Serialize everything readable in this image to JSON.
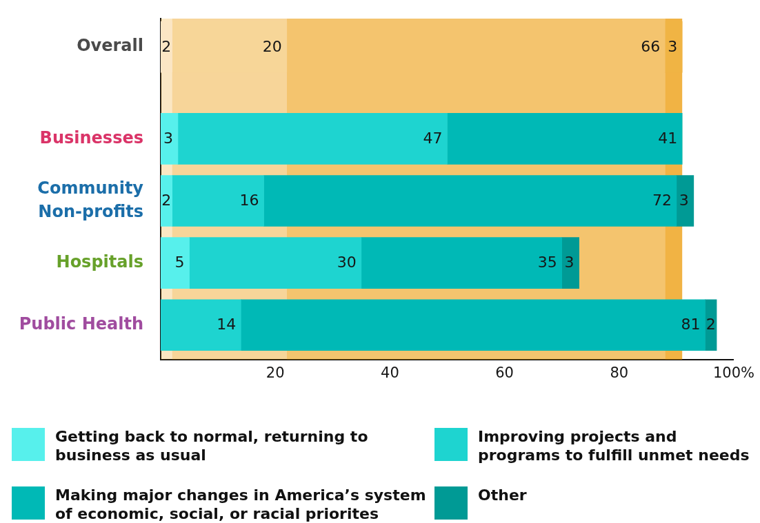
{
  "chart_data": {
    "type": "bar",
    "orientation": "horizontal",
    "stacked": true,
    "categories": [
      "Overall",
      "Businesses",
      "Community Non-profits",
      "Hospitals",
      "Public Health"
    ],
    "series": [
      {
        "name": "Getting back to normal, returning to business as usual",
        "color": "#57f0ec",
        "colors": [
          "#fbe6c4",
          "#57f0ec",
          "#57f0ec",
          "#57f0ec",
          "#57f0ec"
        ],
        "values": [
          2,
          3,
          2,
          5,
          null
        ]
      },
      {
        "name": "Improving projects and programs to fulfill unmet needs",
        "color": "#1ed4d0",
        "colors": [
          "#f7d698",
          "#1ed4d0",
          "#1ed4d0",
          "#1ed4d0",
          "#1ed4d0"
        ],
        "values": [
          20,
          47,
          16,
          30,
          14
        ]
      },
      {
        "name": "Making major changes in America’s system of economic, social, or racial priorites",
        "color": "#00b9b6",
        "colors": [
          "#f4c46e",
          "#00b9b6",
          "#00b9b6",
          "#00b9b6",
          "#00b9b6"
        ],
        "values": [
          66,
          41,
          72,
          35,
          81
        ]
      },
      {
        "name": "Other",
        "color": "#009a95",
        "colors": [
          "#f0b444",
          "#009a95",
          "#009a95",
          "#009a95",
          "#009a95"
        ],
        "values": [
          3,
          null,
          3,
          3,
          2
        ]
      }
    ],
    "xlim": [
      0,
      100
    ],
    "xticks": [
      20,
      40,
      60,
      80,
      {
        "value": 100,
        "label": "100%"
      }
    ],
    "bands": [
      {
        "axis": "x",
        "from": 0,
        "to": 2,
        "color": "#ec9700"
      },
      {
        "axis": "x",
        "from": 2,
        "to": 22,
        "color": "#ec9700"
      },
      {
        "axis": "x",
        "from": 22,
        "to": 88,
        "color": "#ec9700"
      },
      {
        "axis": "x",
        "from": 88,
        "to": 91,
        "color": "#ec9700"
      }
    ],
    "data_labels": true,
    "legend": "bottom"
  }
}
